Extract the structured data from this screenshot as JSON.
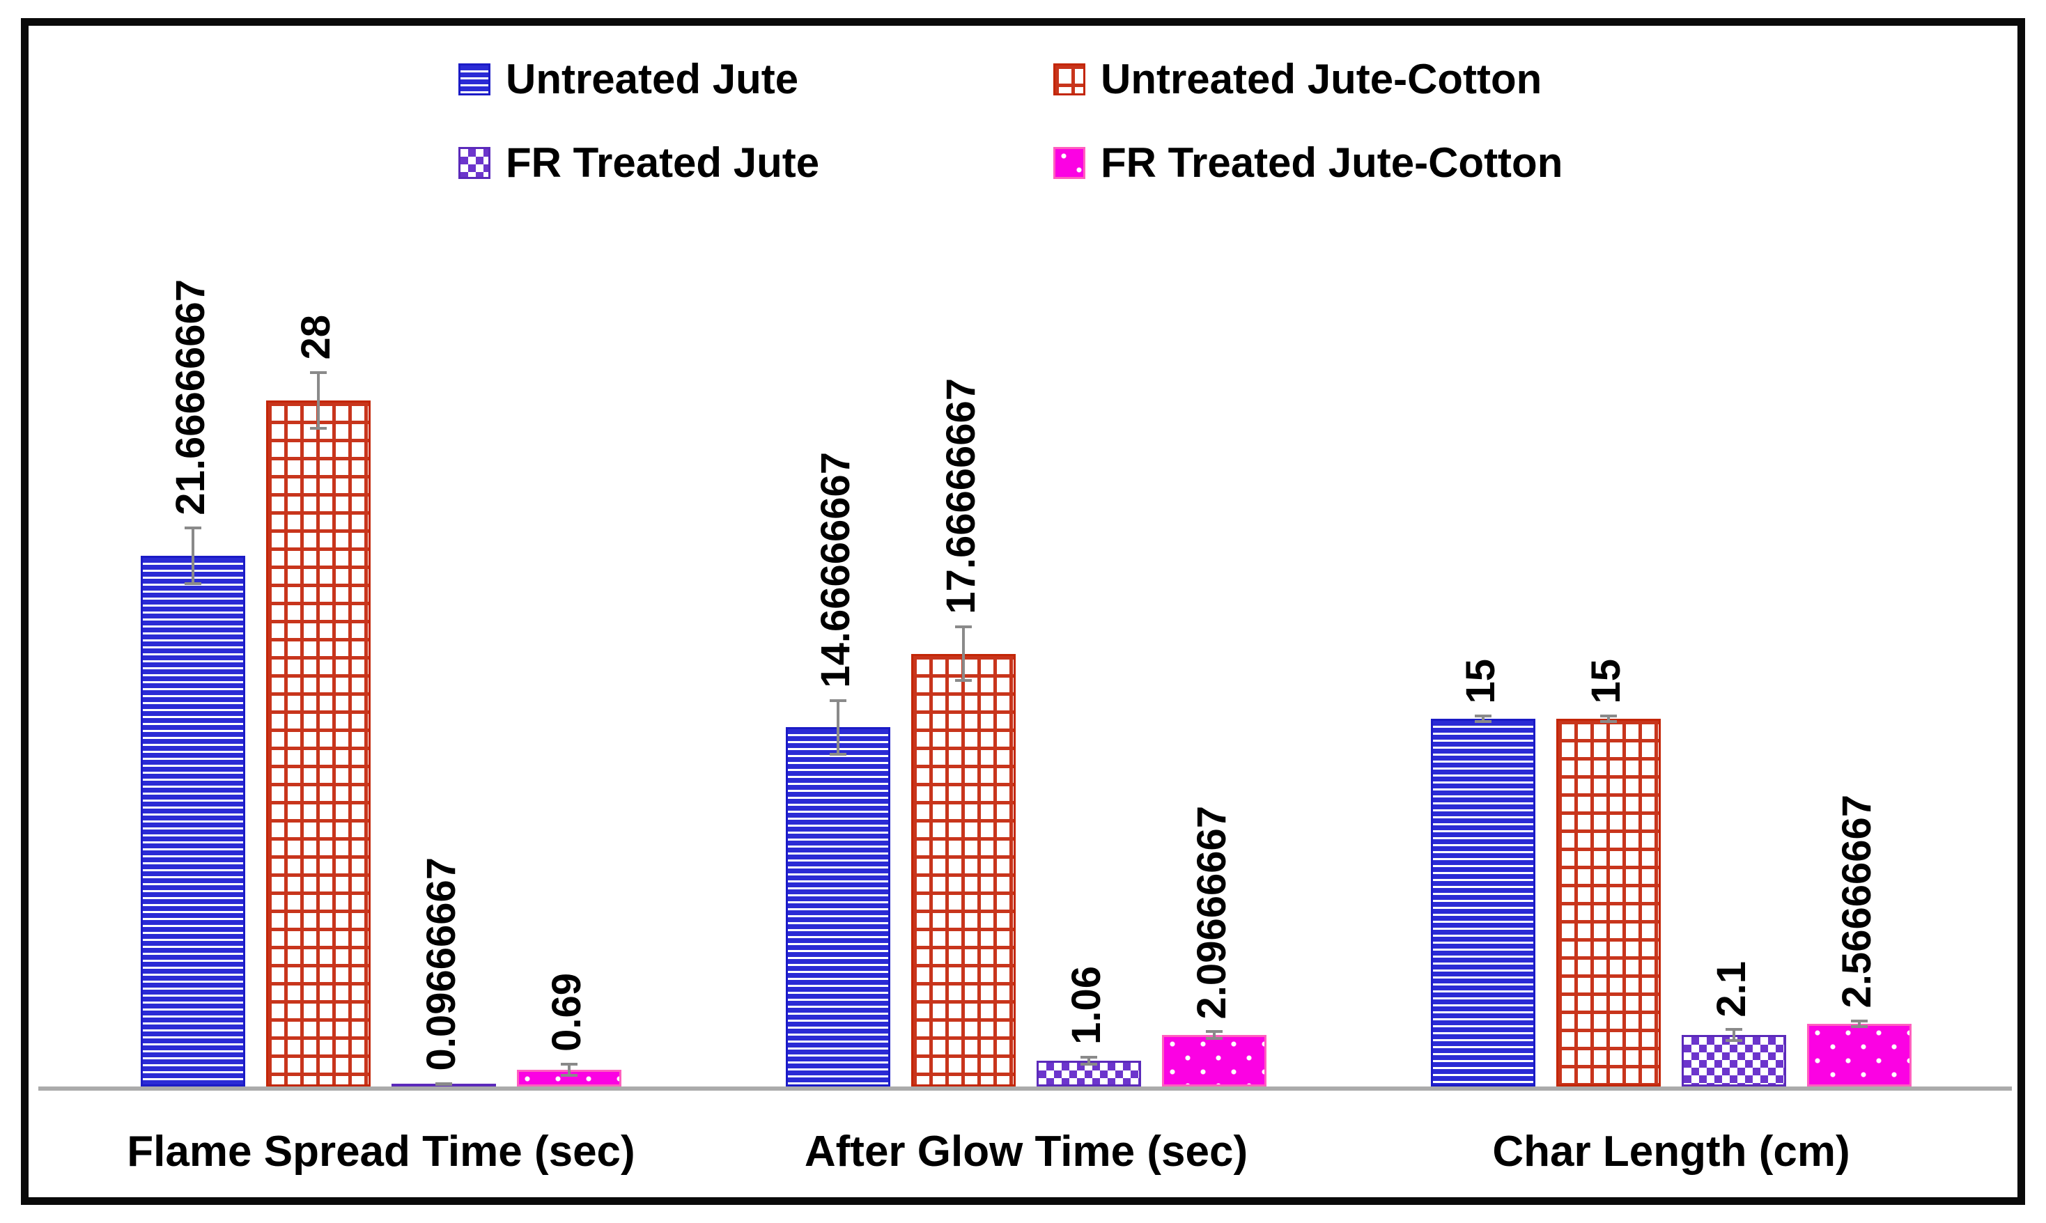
{
  "chart_data": {
    "type": "bar",
    "categories": [
      "Flame Spread Time (sec)",
      "After Glow Time (sec)",
      "Char Length (cm)"
    ],
    "series": [
      {
        "name": "Untreated Jute",
        "pattern": "blue-horizontal-stripes",
        "color": "#2B2BD5",
        "values": [
          21.66666667,
          14.66666667,
          15
        ],
        "labels": [
          "21.66666667",
          "14.66666667",
          "15"
        ],
        "errors": [
          1.2,
          1.15,
          0.17
        ]
      },
      {
        "name": "Untreated Jute-Cotton",
        "pattern": "red-brick",
        "color": "#C8351C",
        "values": [
          28,
          17.66666667,
          15
        ],
        "labels": [
          "28",
          "17.66666667",
          "15"
        ],
        "errors": [
          1.2,
          1.15,
          0.17
        ]
      },
      {
        "name": "FR Treated Jute",
        "pattern": "purple-checkerboard",
        "color": "#6C35CC",
        "values": [
          0.09666667,
          1.06,
          2.1
        ],
        "labels": [
          "0.09666667",
          "1.06",
          "2.1"
        ],
        "errors": [
          0.08,
          0.2,
          0.28
        ]
      },
      {
        "name": "FR Treated Jute-Cotton",
        "pattern": "magenta-white-dots",
        "color": "#FB02E3",
        "values": [
          0.69,
          2.09666667,
          2.56666667
        ],
        "labels": [
          "0.69",
          "2.09666667",
          "2.56666667"
        ],
        "errors": [
          0.28,
          0.2,
          0.17
        ]
      }
    ],
    "ylim": [
      0,
      28
    ],
    "grid": false,
    "y_axis_shown": false,
    "legend_position": "top-center-two-rows",
    "error_bars": true,
    "value_label_rotation": 90,
    "axis_line_color": "#ABABAB",
    "frame_color": "#0a0a0a"
  }
}
